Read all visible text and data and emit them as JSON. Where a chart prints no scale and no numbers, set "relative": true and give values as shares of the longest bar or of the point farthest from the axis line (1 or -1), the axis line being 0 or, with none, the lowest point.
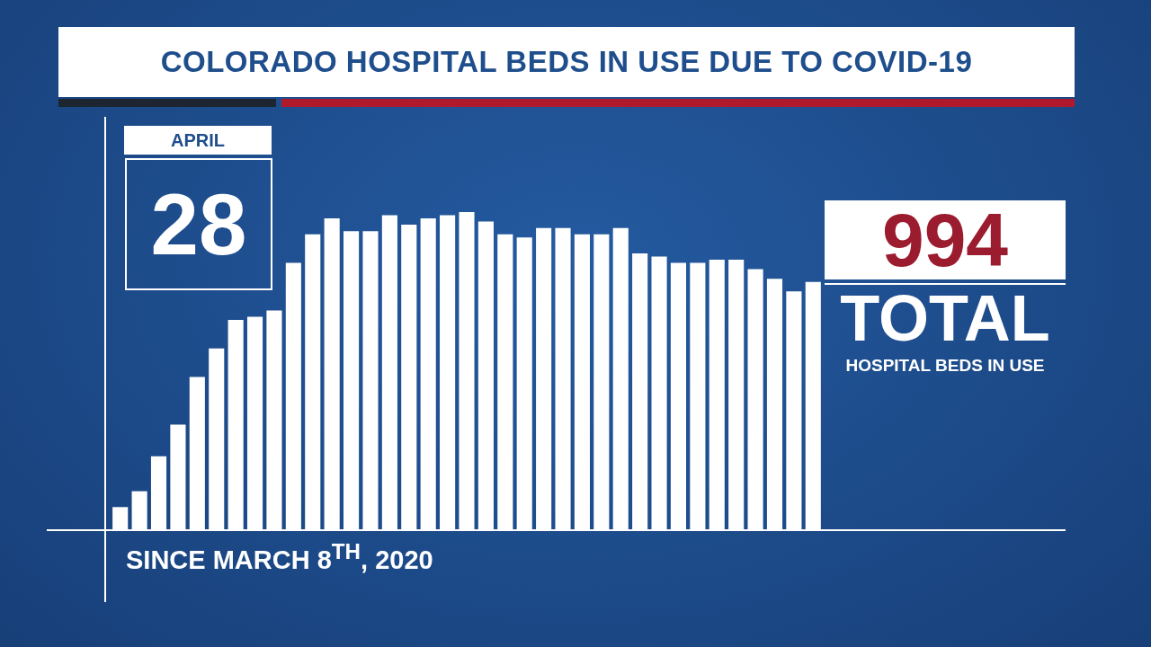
{
  "chart_data": {
    "type": "bar",
    "title": "COLORADO HOSPITAL BEDS IN USE DUE TO COVID-19",
    "relative": true,
    "color": "#ffffff",
    "categories": [
      null,
      null,
      null,
      null,
      null,
      null,
      null,
      null,
      null,
      null,
      null,
      null,
      null,
      null,
      null,
      null,
      null,
      null,
      null,
      null,
      null,
      null,
      null,
      null,
      null,
      null,
      null,
      null,
      null,
      null,
      null,
      null,
      null,
      null,
      null,
      null,
      null
    ],
    "values": [
      0.07,
      0.12,
      0.23,
      0.33,
      0.48,
      0.57,
      0.66,
      0.67,
      0.69,
      0.84,
      0.93,
      0.98,
      0.94,
      0.94,
      0.99,
      0.96,
      0.98,
      0.99,
      1,
      0.97,
      0.93,
      0.92,
      0.95,
      0.95,
      0.93,
      0.93,
      0.95,
      0.87,
      0.86,
      0.84,
      0.84,
      0.85,
      0.85,
      0.82,
      0.79,
      0.75,
      0.78
    ],
    "annotations": [
      "APRIL",
      "28",
      "994",
      "TOTAL",
      "HOSPITAL BEDS IN USE",
      "SINCE MARCH 8$^{TH}$, 2020"
    ]
  }
}
